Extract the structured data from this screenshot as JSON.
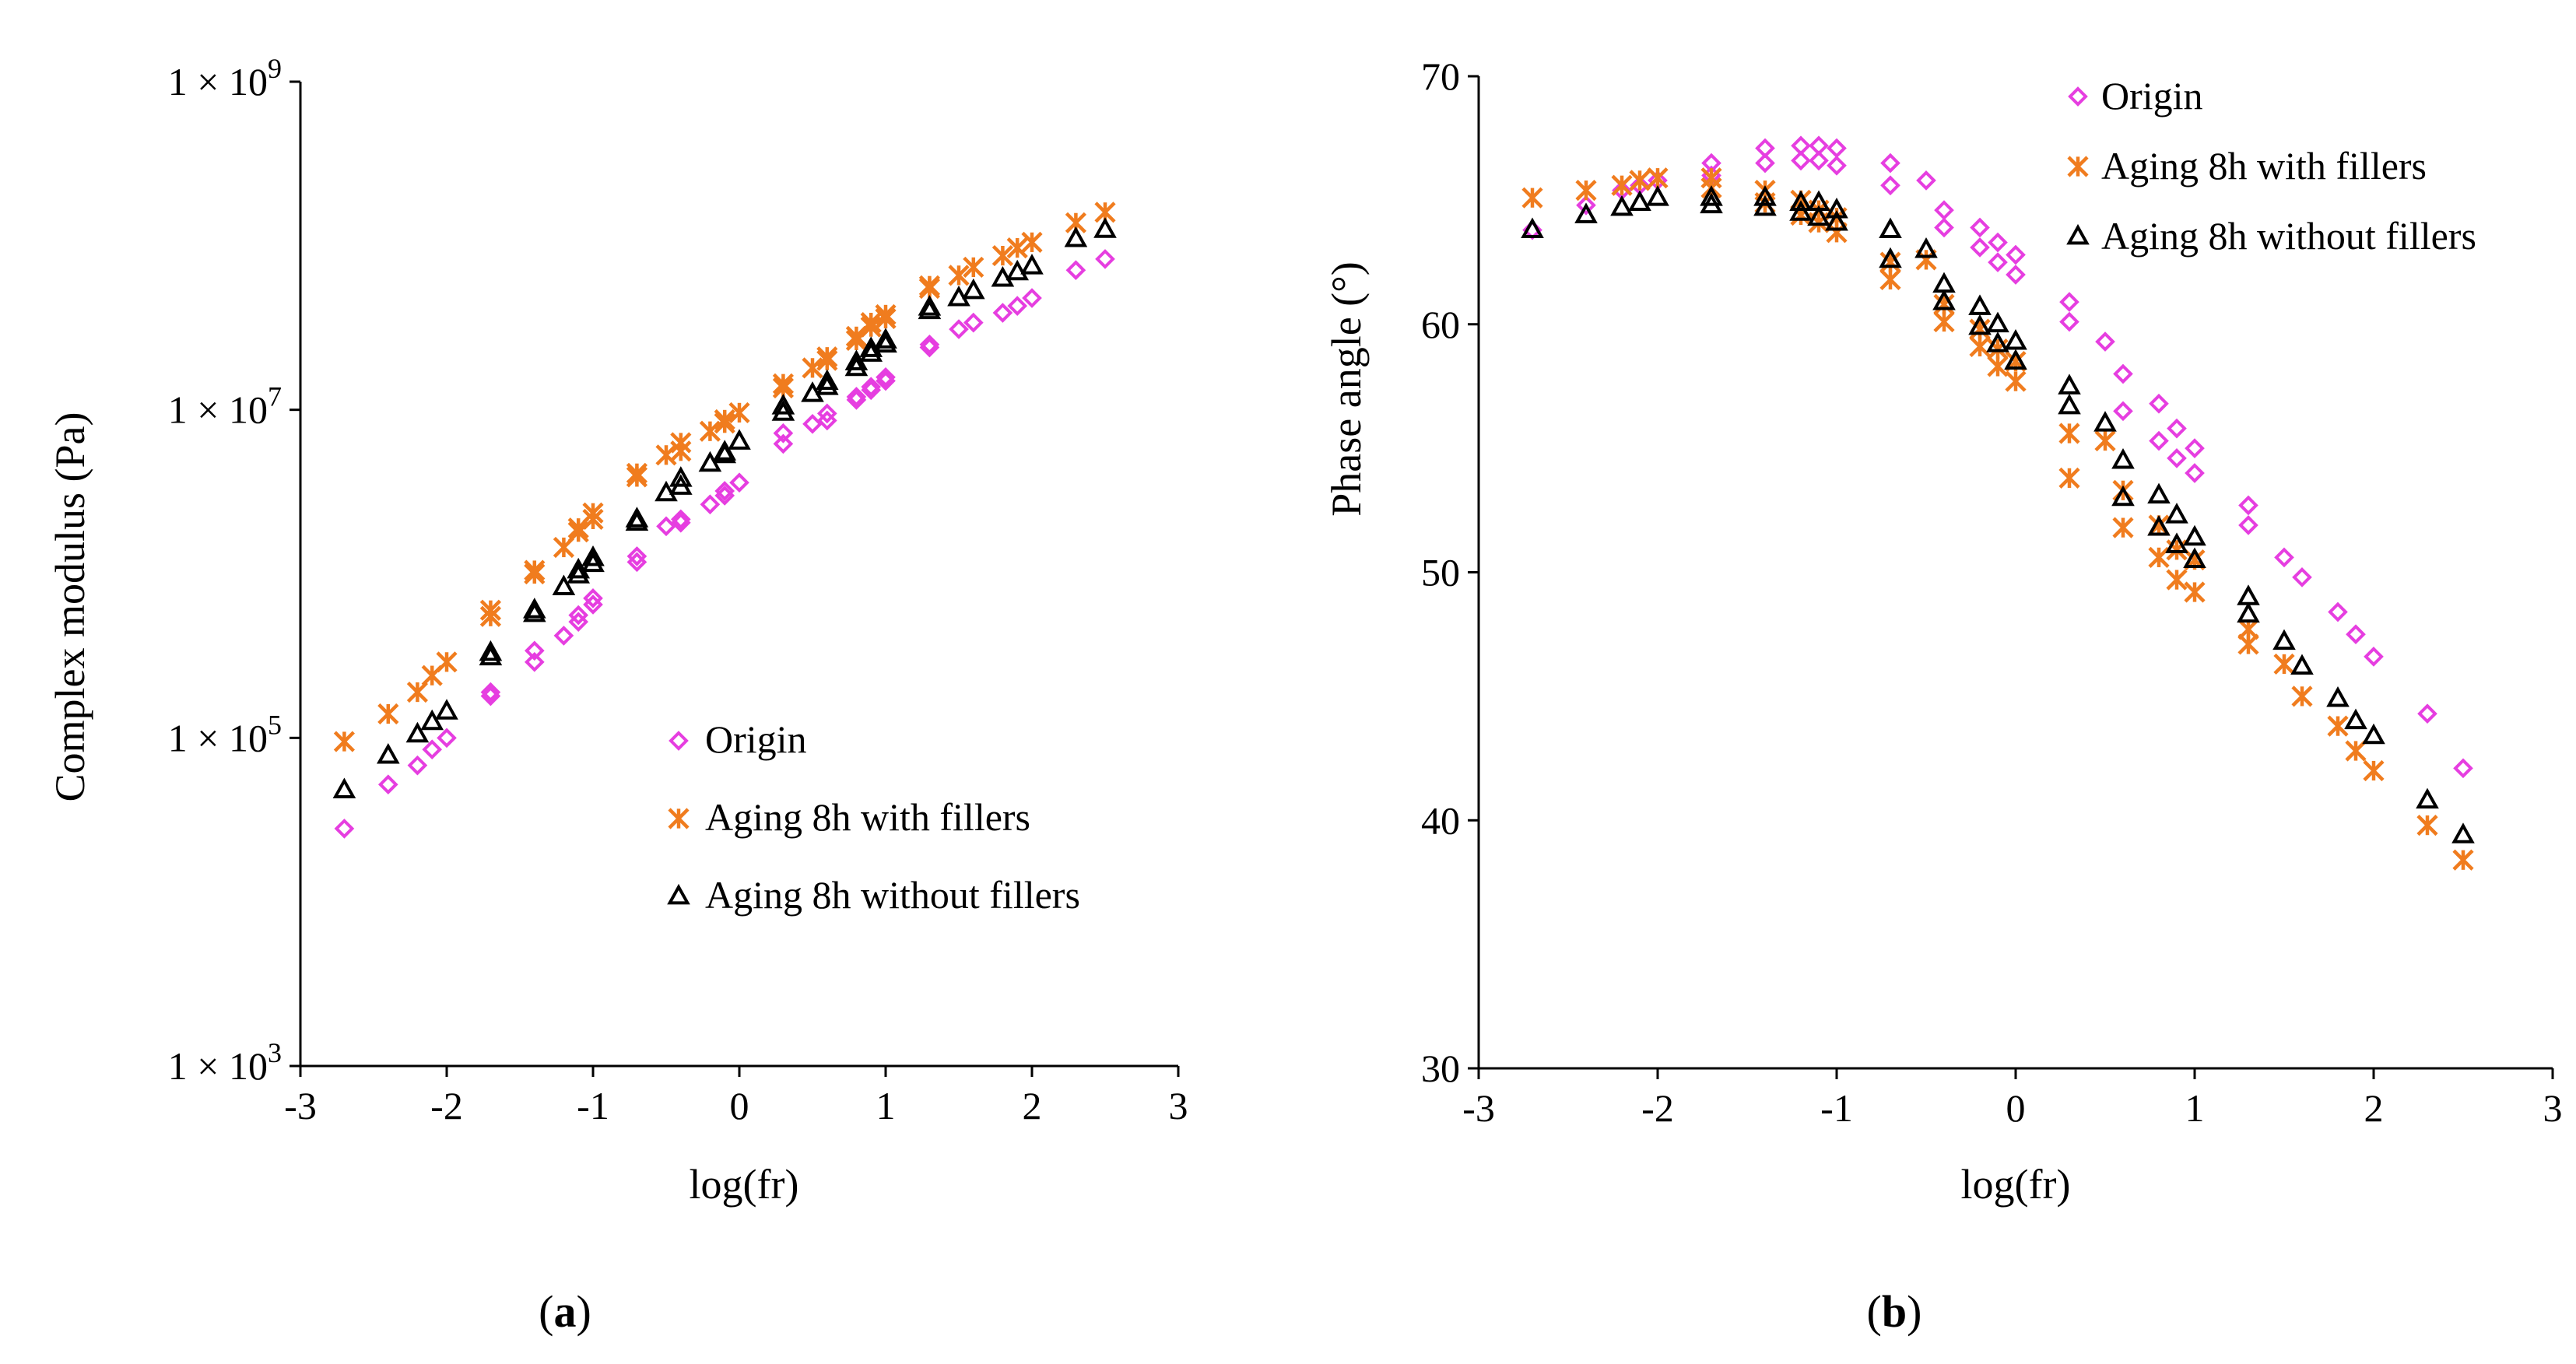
{
  "colors": {
    "origin": "#e63ee0",
    "with_fillers": "#f07c1e",
    "without_fillers": "#000000"
  },
  "chart_data": [
    {
      "type": "scatter",
      "panel_label": {
        "open": "(",
        "letter": "a",
        "close": ")"
      },
      "xlabel": "log(fr)",
      "ylabel": "Complex modulus (Pa)",
      "xlim": [
        -3,
        3
      ],
      "xticks": [
        "-3",
        "-2",
        "-1",
        "0",
        "1",
        "2",
        "3"
      ],
      "yscale": "log",
      "ylim": [
        1000,
        1000000000
      ],
      "yticks": [
        {
          "value": 1000000000,
          "mant": "1 × 10",
          "exp": "9"
        },
        {
          "value": 10000000,
          "mant": "1 × 10",
          "exp": "7"
        },
        {
          "value": 100000,
          "mant": "1 × 10",
          "exp": "5"
        },
        {
          "value": 1000,
          "mant": "1 × 10",
          "exp": "3"
        }
      ],
      "legend_position": "center-right",
      "series": [
        {
          "name": "Origin",
          "marker": "diamond",
          "color": "#e63ee0",
          "x": [
            -2.7,
            -2.4,
            -2.2,
            -2.1,
            -2.0,
            -1.7,
            -1.7,
            -1.4,
            -1.4,
            -1.2,
            -1.1,
            -1.1,
            -1.0,
            -1.0,
            -0.7,
            -0.7,
            -0.5,
            -0.4,
            -0.4,
            -0.2,
            -0.1,
            -0.1,
            0.0,
            0.3,
            0.3,
            0.5,
            0.6,
            0.6,
            0.8,
            0.8,
            0.9,
            0.9,
            1.0,
            1.0,
            1.3,
            1.3,
            1.5,
            1.6,
            1.8,
            1.9,
            2.0,
            2.3,
            2.5
          ],
          "y": [
            28000,
            52000,
            68000,
            85000,
            100000,
            180000,
            190000,
            290000,
            340000,
            420000,
            510000,
            560000,
            650000,
            710000,
            1180000,
            1280000,
            1950000,
            2050000,
            2150000,
            2650000,
            3000000,
            3200000,
            3600000,
            6200000,
            7200000,
            8200000,
            8600000,
            9500000,
            11500000,
            12000000,
            13200000,
            13800000,
            15000000,
            15800000,
            24000000,
            25000000,
            31000000,
            34000000,
            39000000,
            43000000,
            48000000,
            71000000,
            83000000
          ]
        },
        {
          "name": "Aging 8h with fillers",
          "marker": "asterisk",
          "color": "#f07c1e",
          "x": [
            -2.7,
            -2.4,
            -2.2,
            -2.1,
            -2.0,
            -1.7,
            -1.7,
            -1.4,
            -1.4,
            -1.2,
            -1.1,
            -1.1,
            -1.0,
            -1.0,
            -0.7,
            -0.7,
            -0.5,
            -0.4,
            -0.4,
            -0.2,
            -0.1,
            -0.1,
            0.0,
            0.3,
            0.3,
            0.5,
            0.6,
            0.6,
            0.8,
            0.8,
            0.9,
            0.9,
            1.0,
            1.0,
            1.3,
            1.3,
            1.5,
            1.6,
            1.8,
            1.9,
            2.0,
            2.3,
            2.5
          ],
          "y": [
            95000,
            140000,
            190000,
            240000,
            290000,
            550000,
            600000,
            1000000,
            1050000,
            1450000,
            1800000,
            1900000,
            2150000,
            2350000,
            3900000,
            4100000,
            5300000,
            5600000,
            6300000,
            7400000,
            8300000,
            8700000,
            9600000,
            13600000,
            14400000,
            18000000,
            20000000,
            21000000,
            26500000,
            28000000,
            32000000,
            34000000,
            36000000,
            38000000,
            55000000,
            57000000,
            66000000,
            74000000,
            87000000,
            97000000,
            105000000,
            138000000,
            160000000
          ]
        },
        {
          "name": "Aging 8h without fillers",
          "marker": "triangle",
          "color": "#000000",
          "x": [
            -2.7,
            -2.4,
            -2.2,
            -2.1,
            -2.0,
            -1.7,
            -1.7,
            -1.4,
            -1.4,
            -1.2,
            -1.1,
            -1.1,
            -1.0,
            -1.0,
            -0.7,
            -0.7,
            -0.5,
            -0.4,
            -0.4,
            -0.2,
            -0.1,
            -0.1,
            0.0,
            0.3,
            0.3,
            0.5,
            0.6,
            0.6,
            0.8,
            0.8,
            0.9,
            0.9,
            1.0,
            1.0,
            1.3,
            1.3,
            1.5,
            1.6,
            1.8,
            1.9,
            2.0,
            2.3,
            2.5
          ],
          "y": [
            48000,
            78000,
            105000,
            125000,
            145000,
            310000,
            330000,
            570000,
            600000,
            830000,
            980000,
            1050000,
            1150000,
            1250000,
            2050000,
            2150000,
            3100000,
            3400000,
            3800000,
            4700000,
            5300000,
            5500000,
            6400000,
            9600000,
            10500000,
            12500000,
            13800000,
            14800000,
            18000000,
            19500000,
            22000000,
            23500000,
            25000000,
            26500000,
            40000000,
            42000000,
            48000000,
            53000000,
            63000000,
            69000000,
            75000000,
            110000000,
            125000000
          ]
        }
      ]
    },
    {
      "type": "scatter",
      "panel_label": {
        "open": "(",
        "letter": "b",
        "close": ")"
      },
      "xlabel": "log(fr)",
      "ylabel": "Phase angle (°)",
      "xlim": [
        -3,
        3
      ],
      "xticks": [
        "-3",
        "-2",
        "-1",
        "0",
        "1",
        "2",
        "3"
      ],
      "yscale": "linear",
      "ylim": [
        30,
        70
      ],
      "yticks": [
        {
          "value": 70,
          "label": "70"
        },
        {
          "value": 60,
          "label": "60"
        },
        {
          "value": 50,
          "label": "50"
        },
        {
          "value": 40,
          "label": "40"
        },
        {
          "value": 30,
          "label": "30"
        }
      ],
      "legend_position": "top-right",
      "series": [
        {
          "name": "Origin",
          "marker": "diamond",
          "color": "#e63ee0",
          "x": [
            -2.7,
            -2.4,
            -2.2,
            -2.1,
            -2.0,
            -1.7,
            -1.7,
            -1.4,
            -1.4,
            -1.2,
            -1.2,
            -1.1,
            -1.1,
            -1.0,
            -1.0,
            -0.7,
            -0.7,
            -0.5,
            -0.4,
            -0.4,
            -0.2,
            -0.2,
            -0.1,
            -0.1,
            0.0,
            0.0,
            0.3,
            0.3,
            0.5,
            0.6,
            0.6,
            0.8,
            0.8,
            0.9,
            0.9,
            1.0,
            1.0,
            1.3,
            1.3,
            1.5,
            1.6,
            1.8,
            1.9,
            2.0,
            2.3,
            2.5
          ],
          "y": [
            63.8,
            64.8,
            65.4,
            65.6,
            65.8,
            66.5,
            66.0,
            67.1,
            66.5,
            67.2,
            66.6,
            67.2,
            66.6,
            67.1,
            66.4,
            66.5,
            65.6,
            65.8,
            64.6,
            63.9,
            63.9,
            63.1,
            63.3,
            62.5,
            62.8,
            62.0,
            60.9,
            60.1,
            59.3,
            58.0,
            56.5,
            56.8,
            55.3,
            55.8,
            54.6,
            55.0,
            54.0,
            52.7,
            51.9,
            50.6,
            49.8,
            48.4,
            47.5,
            46.6,
            44.3,
            42.1
          ]
        },
        {
          "name": "Aging 8h with fillers",
          "marker": "asterisk",
          "color": "#f07c1e",
          "x": [
            -2.7,
            -2.4,
            -2.2,
            -2.1,
            -2.0,
            -1.7,
            -1.7,
            -1.4,
            -1.4,
            -1.2,
            -1.2,
            -1.1,
            -1.1,
            -1.0,
            -1.0,
            -0.7,
            -0.7,
            -0.5,
            -0.4,
            -0.4,
            -0.2,
            -0.2,
            -0.1,
            -0.1,
            0.0,
            0.0,
            0.3,
            0.3,
            0.5,
            0.6,
            0.6,
            0.8,
            0.8,
            0.9,
            0.9,
            1.0,
            1.0,
            1.3,
            1.3,
            1.5,
            1.6,
            1.8,
            1.9,
            2.0,
            2.3,
            2.5
          ],
          "y": [
            65.1,
            65.4,
            65.6,
            65.8,
            65.9,
            65.9,
            65.5,
            65.4,
            64.9,
            65.0,
            64.4,
            64.6,
            64.1,
            64.3,
            63.7,
            62.5,
            61.8,
            62.6,
            60.8,
            60.1,
            59.8,
            59.1,
            59.0,
            58.3,
            58.5,
            57.7,
            55.6,
            53.8,
            55.3,
            53.3,
            51.8,
            51.9,
            50.6,
            50.9,
            49.7,
            50.5,
            49.2,
            47.7,
            47.1,
            46.3,
            45.0,
            43.8,
            42.8,
            42.0,
            39.8,
            38.4
          ]
        },
        {
          "name": "Aging 8h without fillers",
          "marker": "triangle",
          "color": "#000000",
          "x": [
            -2.7,
            -2.4,
            -2.2,
            -2.1,
            -2.0,
            -1.7,
            -1.7,
            -1.4,
            -1.4,
            -1.2,
            -1.2,
            -1.1,
            -1.1,
            -1.0,
            -1.0,
            -0.7,
            -0.7,
            -0.5,
            -0.4,
            -0.4,
            -0.2,
            -0.2,
            -0.1,
            -0.1,
            0.0,
            0.0,
            0.3,
            0.3,
            0.5,
            0.6,
            0.6,
            0.8,
            0.8,
            0.9,
            0.9,
            1.0,
            1.0,
            1.3,
            1.3,
            1.5,
            1.6,
            1.8,
            1.9,
            2.0,
            2.3,
            2.5
          ],
          "y": [
            63.8,
            64.4,
            64.7,
            64.9,
            65.1,
            65.1,
            64.8,
            65.1,
            64.7,
            64.9,
            64.5,
            64.9,
            64.3,
            64.6,
            64.1,
            63.8,
            62.6,
            63.0,
            61.6,
            60.9,
            60.7,
            59.9,
            60.0,
            59.2,
            59.3,
            58.5,
            57.5,
            56.7,
            56.0,
            54.5,
            53.0,
            53.1,
            51.8,
            52.3,
            51.1,
            51.4,
            50.5,
            49.0,
            48.3,
            47.2,
            46.2,
            44.9,
            44.0,
            43.4,
            40.8,
            39.4
          ]
        }
      ]
    }
  ]
}
